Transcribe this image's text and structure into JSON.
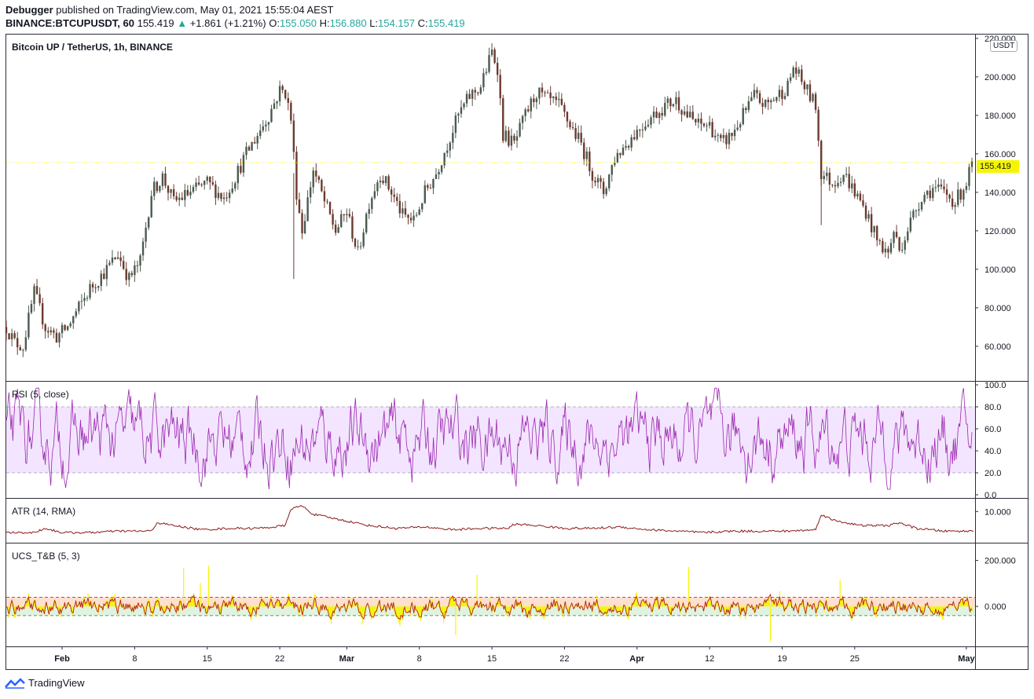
{
  "header": {
    "author": "Debugger",
    "published_text": "published on TradingView.com, May 01, 2021 15:55:04 AEST",
    "symbol": "BINANCE:BTCUPUSDT, 60",
    "last": "155.419",
    "change": "+1.861 (+1.21%)",
    "o_label": "O:",
    "o_value": "155.050",
    "h_label": "H:",
    "h_value": "156.880",
    "l_label": "L:",
    "l_value": "154.157",
    "c_label": "C:",
    "c_value": "155.419"
  },
  "main_pane": {
    "title": "Bitcoin UP / TetherUS, 1h, BINANCE",
    "currency": "USDT",
    "last_price_label": "155.419"
  },
  "panes": {
    "rsi": {
      "label": "RSI (5, close)"
    },
    "atr": {
      "label": "ATR (14, RMA)"
    },
    "ucs": {
      "label": "UCS_T&B (5, 3)"
    }
  },
  "footer": {
    "brand": "TradingView"
  },
  "colors": {
    "up": "#26a69a",
    "candle_up": "#4b5a4f",
    "candle_down": "#6b3a2f",
    "rsi_line": "#9c27b0",
    "rsi_fill": "#f3e5ff",
    "atr_line": "#8b1a1a",
    "ucs_line": "#b71c1c",
    "ucs_hist": "#f5f500",
    "last_price": "#f5f500"
  },
  "chart_data": [
    {
      "type": "candlestick",
      "title": "Bitcoin UP / TetherUS, 1h, BINANCE",
      "x_ticks": [
        "Feb",
        "8",
        "15",
        "22",
        "Mar",
        "8",
        "15",
        "22",
        "Apr",
        "12",
        "19",
        "25",
        "May"
      ],
      "y_ticks": [
        60,
        80,
        100,
        120,
        140,
        160,
        180,
        200,
        220
      ],
      "y_tick_labels": [
        "60.000",
        "80.000",
        "100.000",
        "120.000",
        "140.000",
        "160.000",
        "180.000",
        "200.000",
        "220.000"
      ],
      "ylim": [
        42,
        222
      ],
      "last_price": 155.419,
      "approx_close_path": [
        [
          0,
          70
        ],
        [
          3,
          62
        ],
        [
          6,
          60
        ],
        [
          10,
          88
        ],
        [
          14,
          70
        ],
        [
          18,
          65
        ],
        [
          22,
          70
        ],
        [
          26,
          80
        ],
        [
          30,
          90
        ],
        [
          36,
          100
        ],
        [
          40,
          108
        ],
        [
          44,
          95
        ],
        [
          48,
          104
        ],
        [
          52,
          140
        ],
        [
          56,
          148
        ],
        [
          60,
          135
        ],
        [
          66,
          140
        ],
        [
          72,
          145
        ],
        [
          78,
          137
        ],
        [
          82,
          148
        ],
        [
          86,
          160
        ],
        [
          90,
          170
        ],
        [
          94,
          180
        ],
        [
          98,
          193
        ],
        [
          100,
          192
        ],
        [
          102,
          178
        ],
        [
          104,
          140
        ],
        [
          106,
          120
        ],
        [
          110,
          152
        ],
        [
          114,
          135
        ],
        [
          118,
          120
        ],
        [
          122,
          130
        ],
        [
          126,
          108
        ],
        [
          130,
          135
        ],
        [
          134,
          150
        ],
        [
          138,
          140
        ],
        [
          142,
          128
        ],
        [
          146,
          125
        ],
        [
          150,
          140
        ],
        [
          154,
          150
        ],
        [
          158,
          165
        ],
        [
          162,
          180
        ],
        [
          166,
          190
        ],
        [
          170,
          195
        ],
        [
          174,
          213
        ],
        [
          176,
          205
        ],
        [
          178,
          170
        ],
        [
          182,
          165
        ],
        [
          186,
          180
        ],
        [
          190,
          192
        ],
        [
          194,
          188
        ],
        [
          198,
          185
        ],
        [
          202,
          175
        ],
        [
          206,
          165
        ],
        [
          210,
          150
        ],
        [
          214,
          140
        ],
        [
          218,
          158
        ],
        [
          222,
          165
        ],
        [
          226,
          172
        ],
        [
          230,
          178
        ],
        [
          236,
          185
        ],
        [
          240,
          188
        ],
        [
          244,
          180
        ],
        [
          248,
          175
        ],
        [
          252,
          175
        ],
        [
          256,
          165
        ],
        [
          260,
          170
        ],
        [
          264,
          180
        ],
        [
          268,
          190
        ],
        [
          272,
          185
        ],
        [
          276,
          190
        ],
        [
          280,
          195
        ],
        [
          282,
          205
        ],
        [
          284,
          200
        ],
        [
          286,
          195
        ],
        [
          290,
          185
        ],
        [
          292,
          150
        ],
        [
          296,
          145
        ],
        [
          300,
          150
        ],
        [
          304,
          140
        ],
        [
          308,
          130
        ],
        [
          312,
          115
        ],
        [
          316,
          108
        ],
        [
          318,
          120
        ],
        [
          320,
          110
        ],
        [
          324,
          125
        ],
        [
          328,
          138
        ],
        [
          332,
          142
        ],
        [
          336,
          140
        ],
        [
          340,
          135
        ],
        [
          344,
          145
        ],
        [
          346,
          155
        ]
      ]
    },
    {
      "type": "line",
      "title": "RSI (5, close)",
      "y_ticks": [
        0,
        20,
        40,
        60,
        80,
        100
      ],
      "y_tick_labels": [
        "0.0",
        "20.0",
        "40.0",
        "60.0",
        "80.0",
        "100.0"
      ],
      "ylim": [
        0,
        100
      ],
      "band": [
        20,
        80
      ]
    },
    {
      "type": "line",
      "title": "ATR (14, RMA)",
      "y_ticks": [
        10
      ],
      "y_tick_labels": [
        "10.000"
      ],
      "ylim": [
        0,
        14
      ],
      "approx_values": [
        [
          0,
          2.5
        ],
        [
          10,
          2.5
        ],
        [
          14,
          4
        ],
        [
          20,
          2.5
        ],
        [
          30,
          2.5
        ],
        [
          40,
          3
        ],
        [
          52,
          3
        ],
        [
          54,
          6
        ],
        [
          60,
          5
        ],
        [
          70,
          3.5
        ],
        [
          80,
          4
        ],
        [
          90,
          4
        ],
        [
          96,
          4.5
        ],
        [
          100,
          5
        ],
        [
          102,
          11
        ],
        [
          106,
          12
        ],
        [
          110,
          9
        ],
        [
          120,
          7
        ],
        [
          130,
          5
        ],
        [
          140,
          4
        ],
        [
          150,
          4.5
        ],
        [
          160,
          3.5
        ],
        [
          170,
          4
        ],
        [
          180,
          4
        ],
        [
          182,
          5.5
        ],
        [
          190,
          5
        ],
        [
          200,
          4
        ],
        [
          210,
          4
        ],
        [
          220,
          4.5
        ],
        [
          230,
          3.5
        ],
        [
          240,
          3
        ],
        [
          250,
          2.5
        ],
        [
          260,
          3
        ],
        [
          270,
          3
        ],
        [
          280,
          3
        ],
        [
          290,
          3.5
        ],
        [
          292,
          9
        ],
        [
          296,
          7
        ],
        [
          306,
          5
        ],
        [
          316,
          5
        ],
        [
          320,
          6
        ],
        [
          326,
          4
        ],
        [
          336,
          3
        ],
        [
          346,
          3
        ]
      ]
    },
    {
      "type": "line",
      "title": "UCS_T&B (5, 3)",
      "y_ticks": [
        0,
        200
      ],
      "y_tick_labels": [
        "0.000",
        "200.000"
      ],
      "ylim": [
        -160,
        260
      ]
    }
  ]
}
